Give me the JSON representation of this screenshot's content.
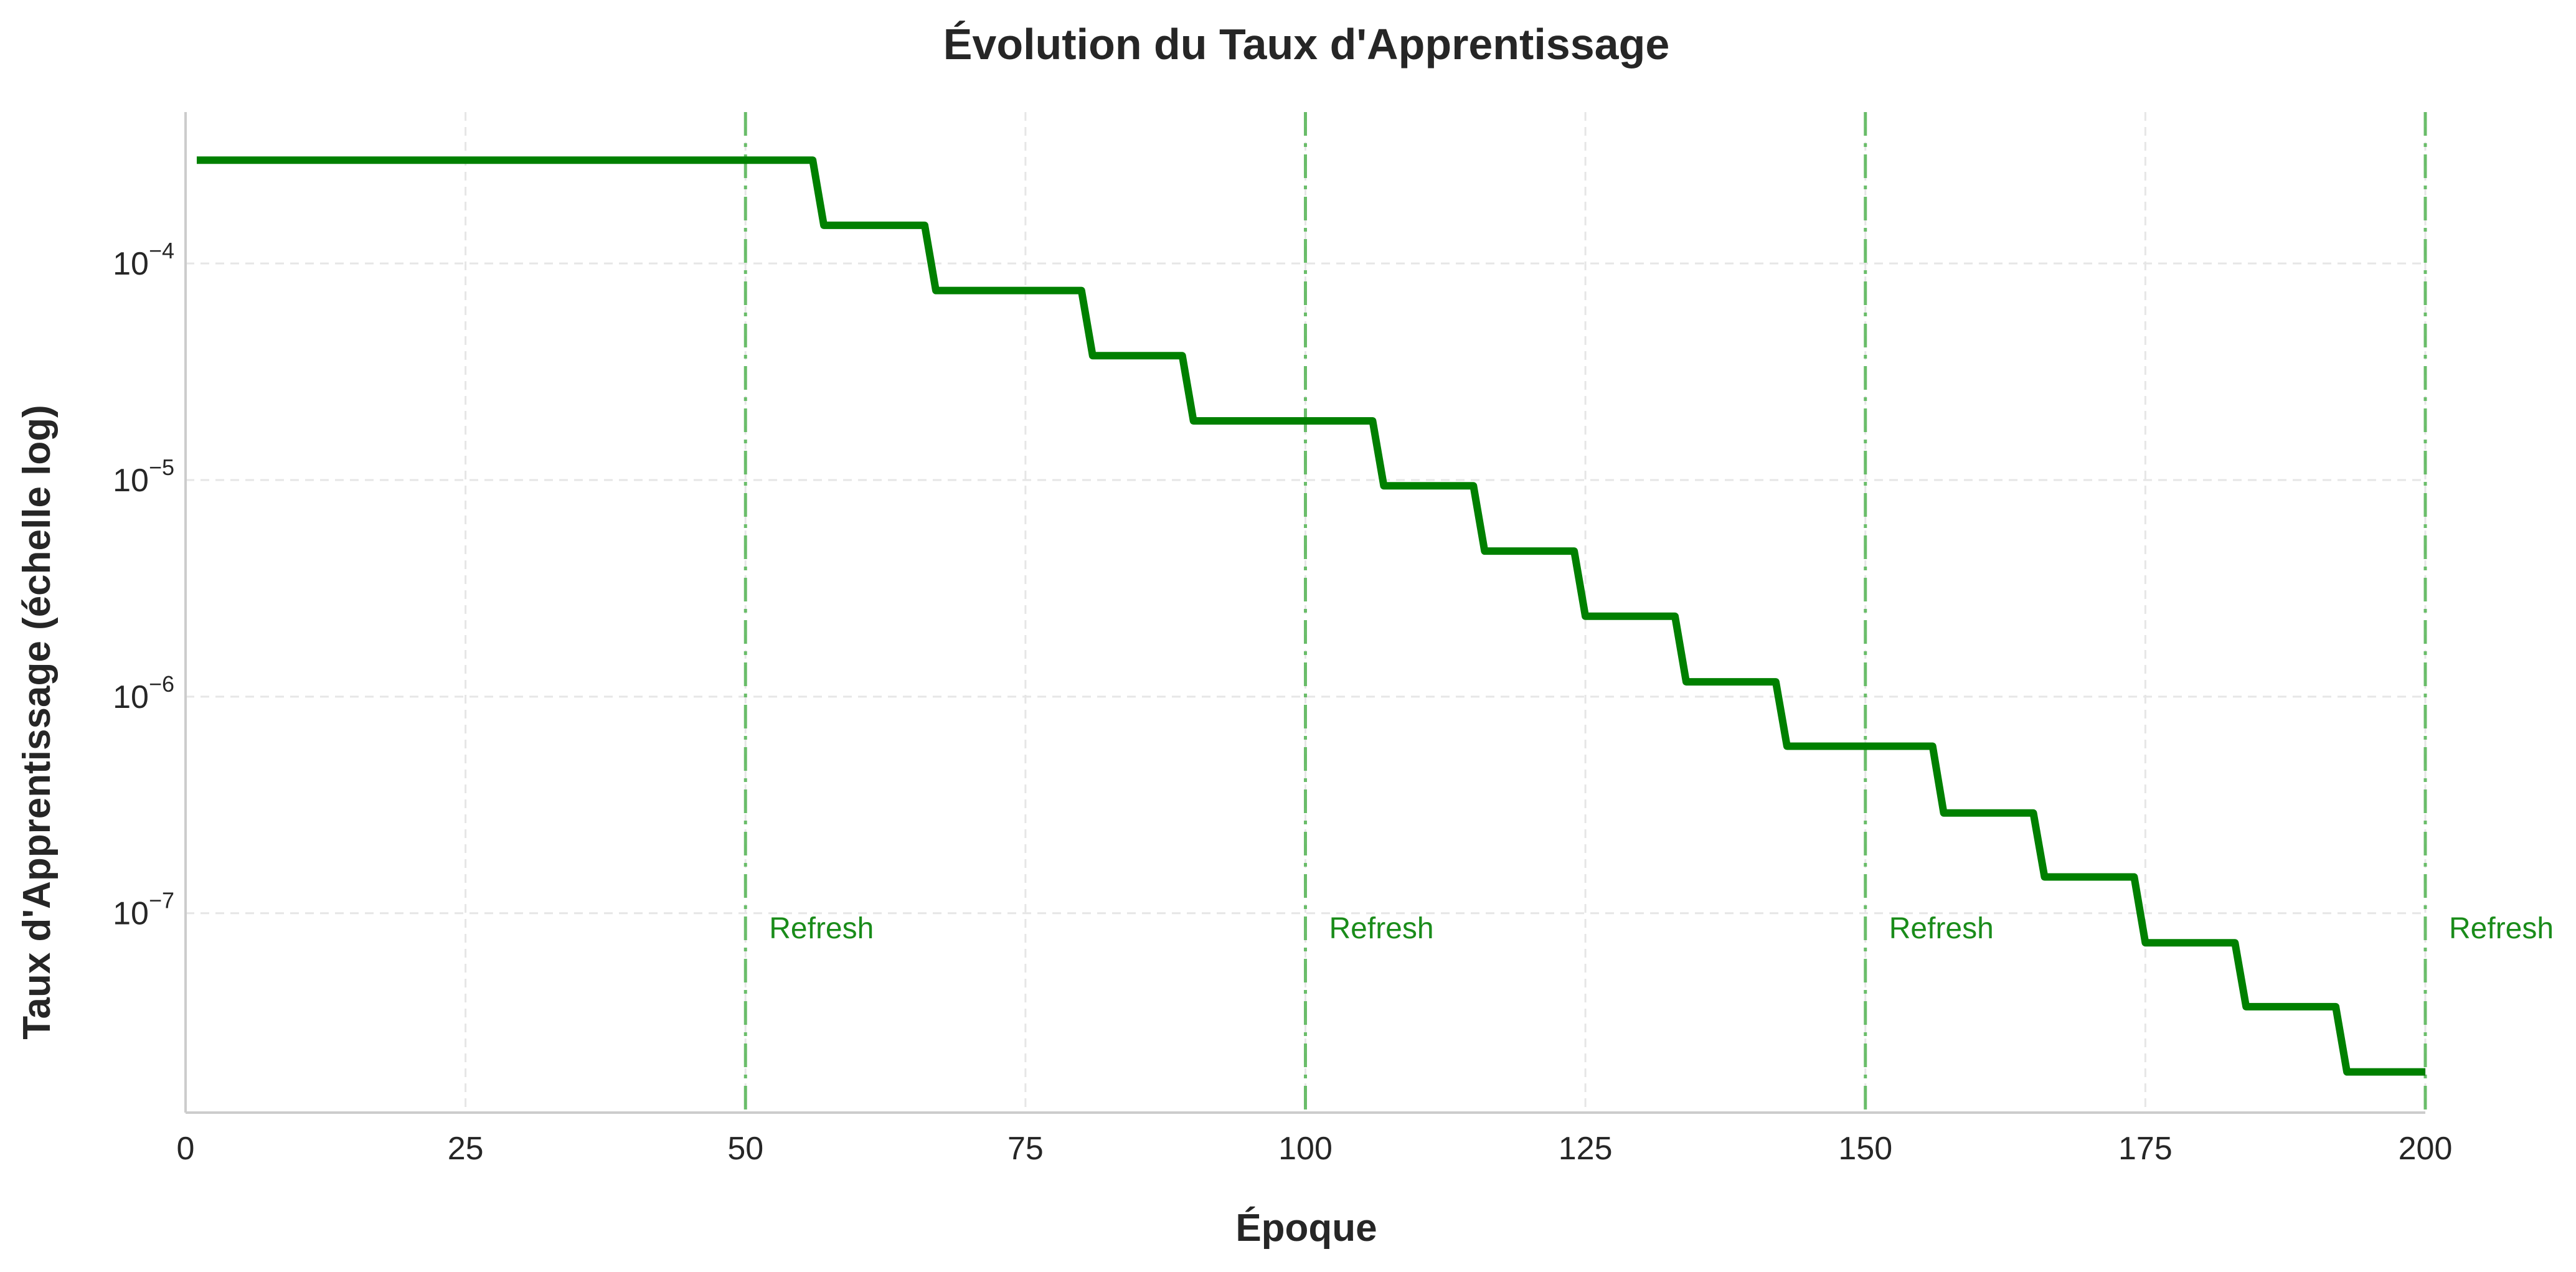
{
  "chart_data": {
    "type": "line",
    "title": "Évolution du Taux d'Apprentissage",
    "xlabel": "Époque",
    "ylabel": "Taux d'Apprentissage (échelle log)",
    "xscale": "linear",
    "yscale": "log",
    "xlim": [
      0,
      200
    ],
    "ylim": [
      1.2e-08,
      0.0005
    ],
    "grid": true,
    "x_ticks": [
      0,
      25,
      50,
      75,
      100,
      125,
      150,
      175,
      200
    ],
    "y_ticks": [
      {
        "value": 0.0001,
        "base": "10",
        "exp": "−4"
      },
      {
        "value": 1e-05,
        "base": "10",
        "exp": "−5"
      },
      {
        "value": 1e-06,
        "base": "10",
        "exp": "−6"
      },
      {
        "value": 1e-07,
        "base": "10",
        "exp": "−7"
      }
    ],
    "series": [
      {
        "color": "#008000",
        "x": [
          1,
          56,
          57,
          66,
          67,
          80,
          81,
          89,
          90,
          106,
          107,
          115,
          116,
          124,
          125,
          133,
          134,
          142,
          143,
          156,
          157,
          165,
          166,
          174,
          175,
          183,
          184,
          192,
          193,
          200
        ],
        "y": [
          0.0003,
          0.0003,
          0.00015,
          0.00015,
          7.5e-05,
          7.5e-05,
          3.75e-05,
          3.75e-05,
          1.875e-05,
          1.875e-05,
          9.4e-06,
          9.4e-06,
          4.7e-06,
          4.7e-06,
          2.35e-06,
          2.35e-06,
          1.17e-06,
          1.17e-06,
          5.9e-07,
          5.9e-07,
          2.9e-07,
          2.9e-07,
          1.47e-07,
          1.47e-07,
          7.3e-08,
          7.3e-08,
          3.7e-08,
          3.7e-08,
          1.85e-08,
          1.85e-08
        ]
      }
    ],
    "vlines": [
      {
        "x": 50,
        "label": "Refresh"
      },
      {
        "x": 100,
        "label": "Refresh"
      },
      {
        "x": 150,
        "label": "Refresh"
      },
      {
        "x": 200,
        "label": "Refresh"
      }
    ],
    "vline_color": "#5cb85c",
    "annotation_color": "#1a8c1a",
    "annotation_y": 8.5e-08
  }
}
